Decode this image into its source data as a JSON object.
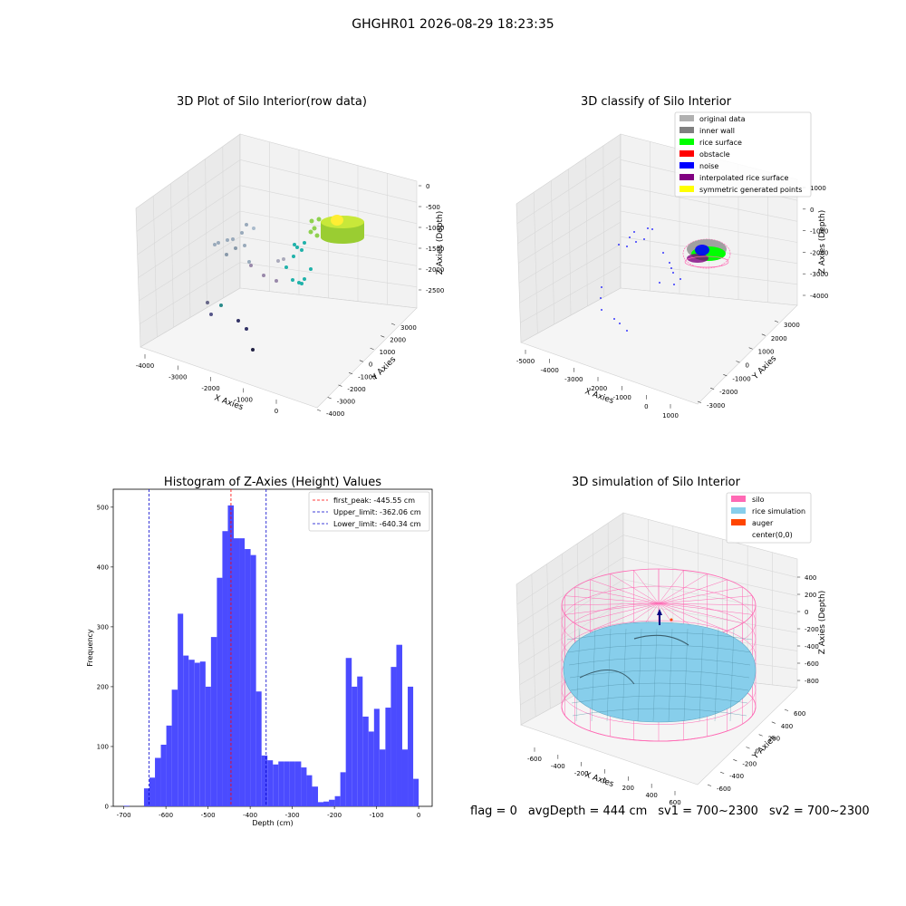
{
  "suptitle": "GHGHR01 2026-08-29 18:23:35",
  "colors": {
    "hist_bar": "#4b4bff",
    "first_peak": "#ff0000",
    "limit": "#0000cc",
    "pane": "#eaeaea",
    "silo": "#ff69b4",
    "rice_sim": "#87ceeb",
    "auger": "#ff4500",
    "teal": "#20b2aa",
    "lime": "#9acd32"
  },
  "panel_raw": {
    "title": "3D Plot of Silo Interior(row data)",
    "xlabel": "X Axies",
    "ylabel": "Y Axies",
    "zlabel": "Z Axies (Depth)",
    "xticks": [
      "-4000",
      "-3000",
      "-2000",
      "-1000",
      "0"
    ],
    "yticks": [
      "3000",
      "2000",
      "1000",
      "0",
      "-1000",
      "-2000",
      "-3000",
      "-4000"
    ],
    "zticks": [
      "0",
      "-500",
      "-1000",
      "-1500",
      "-2000",
      "-2500"
    ]
  },
  "panel_classify": {
    "title": "3D classify of Silo Interior",
    "xlabel": "X Axies",
    "ylabel": "Y Axies",
    "zlabel": "Z Axies (Depth)",
    "xticks": [
      "-5000",
      "-4000",
      "-3000",
      "-2000",
      "-1000",
      "0",
      "1000"
    ],
    "yticks": [
      "3000",
      "2000",
      "1000",
      "0",
      "-1000",
      "-2000",
      "-3000"
    ],
    "zticks": [
      "1000",
      "0",
      "-1000",
      "-2000",
      "-3000",
      "-4000"
    ],
    "legend": [
      {
        "label": "original data",
        "color": "#b0b0b0"
      },
      {
        "label": "inner wall",
        "color": "#808080"
      },
      {
        "label": "rice surface",
        "color": "#00ff00"
      },
      {
        "label": "obstacle",
        "color": "#ff0000"
      },
      {
        "label": "noise",
        "color": "#0000ff"
      },
      {
        "label": "interpolated rice surface",
        "color": "#800080"
      },
      {
        "label": "symmetric generated points",
        "color": "#ffff00"
      }
    ]
  },
  "panel_sim": {
    "title": "3D simulation of Silo Interior",
    "xlabel": "X Axies",
    "ylabel": "Y Axies",
    "zlabel": "Z Axies (Depth)",
    "xticks": [
      "-600",
      "-400",
      "-200",
      "0",
      "200",
      "400",
      "600"
    ],
    "yticks": [
      "600",
      "400",
      "200",
      "0",
      "-200",
      "-400",
      "-600"
    ],
    "zticks": [
      "400",
      "200",
      "0",
      "-200",
      "-400",
      "-600",
      "-800"
    ],
    "legend": [
      {
        "label": "silo",
        "color": "#ff69b4"
      },
      {
        "label": "rice simulation",
        "color": "#87ceeb"
      },
      {
        "label": "auger",
        "color": "#ff4500"
      },
      {
        "label": "center(0,0)",
        "color": ""
      }
    ]
  },
  "chart_data": {
    "type": "bar",
    "title": "Histogram of Z-Axies (Height) Values",
    "xlabel": "Depth (cm)",
    "ylabel": "Frequency",
    "xlim": [
      -725,
      32
    ],
    "ylim": [
      0,
      530
    ],
    "xticks": [
      -700,
      -600,
      -500,
      -400,
      -300,
      -200,
      -100,
      0
    ],
    "yticks": [
      0,
      100,
      200,
      300,
      400,
      500
    ],
    "bins": [
      {
        "x0": -700,
        "x1": -686.5,
        "value": 1
      },
      {
        "x0": -652,
        "x1": -639,
        "value": 30
      },
      {
        "x0": -639,
        "x1": -626,
        "value": 48
      },
      {
        "x0": -626,
        "x1": -612,
        "value": 81
      },
      {
        "x0": -612,
        "x1": -599,
        "value": 103
      },
      {
        "x0": -599,
        "x1": -586,
        "value": 135
      },
      {
        "x0": -586,
        "x1": -572,
        "value": 195
      },
      {
        "x0": -572,
        "x1": -559,
        "value": 322
      },
      {
        "x0": -559,
        "x1": -546,
        "value": 252
      },
      {
        "x0": -546,
        "x1": -532,
        "value": 245
      },
      {
        "x0": -532,
        "x1": -519,
        "value": 240
      },
      {
        "x0": -519,
        "x1": -506,
        "value": 242
      },
      {
        "x0": -506,
        "x1": -493,
        "value": 200
      },
      {
        "x0": -493,
        "x1": -479,
        "value": 283
      },
      {
        "x0": -479,
        "x1": -466,
        "value": 382
      },
      {
        "x0": -466,
        "x1": -453,
        "value": 460
      },
      {
        "x0": -453,
        "x1": -439,
        "value": 503
      },
      {
        "x0": -439,
        "x1": -426,
        "value": 448
      },
      {
        "x0": -426,
        "x1": -413,
        "value": 448
      },
      {
        "x0": -413,
        "x1": -399,
        "value": 430
      },
      {
        "x0": -399,
        "x1": -386,
        "value": 420
      },
      {
        "x0": -386,
        "x1": -373,
        "value": 192
      },
      {
        "x0": -373,
        "x1": -359,
        "value": 85
      },
      {
        "x0": -359,
        "x1": -346,
        "value": 77
      },
      {
        "x0": -346,
        "x1": -333,
        "value": 70
      },
      {
        "x0": -333,
        "x1": -319,
        "value": 75
      },
      {
        "x0": -319,
        "x1": -306,
        "value": 75
      },
      {
        "x0": -306,
        "x1": -293,
        "value": 75
      },
      {
        "x0": -293,
        "x1": -279,
        "value": 75
      },
      {
        "x0": -279,
        "x1": -266,
        "value": 65
      },
      {
        "x0": -266,
        "x1": -253,
        "value": 52
      },
      {
        "x0": -253,
        "x1": -239,
        "value": 33
      },
      {
        "x0": -239,
        "x1": -226,
        "value": 7
      },
      {
        "x0": -226,
        "x1": -213,
        "value": 8
      },
      {
        "x0": -213,
        "x1": -199,
        "value": 11
      },
      {
        "x0": -199,
        "x1": -186,
        "value": 17
      },
      {
        "x0": -186,
        "x1": -173,
        "value": 57
      },
      {
        "x0": -173,
        "x1": -159,
        "value": 248
      },
      {
        "x0": -159,
        "x1": -146,
        "value": 200
      },
      {
        "x0": -146,
        "x1": -133,
        "value": 217
      },
      {
        "x0": -133,
        "x1": -119,
        "value": 150
      },
      {
        "x0": -119,
        "x1": -106,
        "value": 125
      },
      {
        "x0": -106,
        "x1": -93,
        "value": 163
      },
      {
        "x0": -93,
        "x1": -79,
        "value": 95
      },
      {
        "x0": -79,
        "x1": -66,
        "value": 165
      },
      {
        "x0": -66,
        "x1": -53,
        "value": 233
      },
      {
        "x0": -53,
        "x1": -39,
        "value": 270
      },
      {
        "x0": -39,
        "x1": -26,
        "value": 95
      },
      {
        "x0": -26,
        "x1": -13,
        "value": 200
      },
      {
        "x0": -13,
        "x1": 0,
        "value": 46
      }
    ],
    "vlines": [
      {
        "label": "first_peak: -445.55 cm",
        "x": -445.55,
        "color": "#ff0000"
      },
      {
        "label": "Upper_limit: -362.06 cm",
        "x": -362.06,
        "color": "#0000cc"
      },
      {
        "label": "Lower_limit: -640.34 cm",
        "x": -640.34,
        "color": "#0000cc"
      }
    ],
    "legend_position": "top-right",
    "grid": false
  },
  "bottom_info": {
    "flag": "flag = 0",
    "avg_depth": "avgDepth = 444 cm",
    "sv1": "sv1 = 700~2300",
    "sv2": "sv2 = 700~2300"
  }
}
